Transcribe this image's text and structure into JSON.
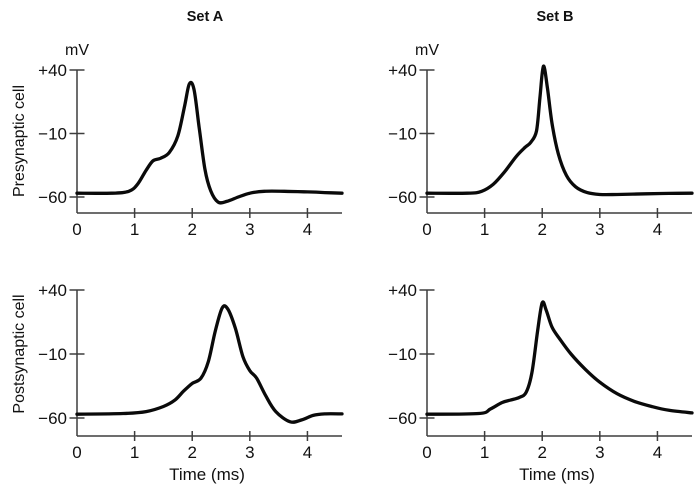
{
  "figure": {
    "background": "#ffffff",
    "curve_color": "#0a0a0a",
    "axis_color": "#3d3d3d",
    "text_color": "#111111"
  },
  "chart_data": {
    "type": "line",
    "columns": [
      "Set A",
      "Set B"
    ],
    "rows": [
      "Presynaptic cell",
      "Postsynaptic cell"
    ],
    "x_axis": {
      "label": "Time (ms)",
      "ticks": [
        0,
        1,
        2,
        3,
        4
      ],
      "range": [
        0,
        4.6
      ]
    },
    "y_axis": {
      "unit_label": "mV",
      "ticks": [
        {
          "value": 40,
          "label": "+40"
        },
        {
          "value": -10,
          "label": "−10"
        },
        {
          "value": -60,
          "label": "−60"
        }
      ],
      "range_shown": [
        -72,
        46
      ]
    },
    "panels": [
      {
        "id": "set-a-presynaptic",
        "column": "Set A",
        "row": "Presynaptic cell",
        "points": [
          [
            0,
            -57
          ],
          [
            0.6,
            -57
          ],
          [
            0.9,
            -55.5
          ],
          [
            1.05,
            -50
          ],
          [
            1.2,
            -39
          ],
          [
            1.32,
            -31.5
          ],
          [
            1.45,
            -29.5
          ],
          [
            1.6,
            -25
          ],
          [
            1.75,
            -12
          ],
          [
            1.87,
            12
          ],
          [
            1.95,
            29
          ],
          [
            2.03,
            25
          ],
          [
            2.12,
            -5
          ],
          [
            2.22,
            -38
          ],
          [
            2.32,
            -55
          ],
          [
            2.45,
            -64
          ],
          [
            2.6,
            -63.5
          ],
          [
            2.8,
            -60
          ],
          [
            3.0,
            -57
          ],
          [
            3.25,
            -55.5
          ],
          [
            3.6,
            -55.5
          ],
          [
            4.0,
            -56
          ],
          [
            4.3,
            -56.5
          ],
          [
            4.6,
            -57
          ]
        ]
      },
      {
        "id": "set-b-presynaptic",
        "column": "Set B",
        "row": "Presynaptic cell",
        "points": [
          [
            0,
            -57
          ],
          [
            0.7,
            -57
          ],
          [
            0.95,
            -55.5
          ],
          [
            1.15,
            -50
          ],
          [
            1.35,
            -40
          ],
          [
            1.55,
            -28
          ],
          [
            1.7,
            -21
          ],
          [
            1.8,
            -17
          ],
          [
            1.9,
            -8
          ],
          [
            1.96,
            18
          ],
          [
            2.02,
            43
          ],
          [
            2.09,
            26
          ],
          [
            2.17,
            -2
          ],
          [
            2.28,
            -26
          ],
          [
            2.42,
            -43
          ],
          [
            2.58,
            -52
          ],
          [
            2.78,
            -56.5
          ],
          [
            3.0,
            -58
          ],
          [
            3.3,
            -58
          ],
          [
            3.8,
            -57.5
          ],
          [
            4.2,
            -57.2
          ],
          [
            4.6,
            -57
          ]
        ]
      },
      {
        "id": "set-a-postsynaptic",
        "column": "Set A",
        "row": "Postsynaptic cell",
        "points": [
          [
            0,
            -57
          ],
          [
            0.8,
            -56.5
          ],
          [
            1.2,
            -55
          ],
          [
            1.5,
            -51
          ],
          [
            1.7,
            -46
          ],
          [
            1.85,
            -39
          ],
          [
            2.0,
            -33
          ],
          [
            2.15,
            -29
          ],
          [
            2.28,
            -16
          ],
          [
            2.4,
            8
          ],
          [
            2.52,
            26
          ],
          [
            2.62,
            25
          ],
          [
            2.75,
            10
          ],
          [
            2.88,
            -12
          ],
          [
            3.0,
            -23
          ],
          [
            3.12,
            -29
          ],
          [
            3.28,
            -43
          ],
          [
            3.45,
            -55
          ],
          [
            3.7,
            -63
          ],
          [
            3.9,
            -61.5
          ],
          [
            4.1,
            -58
          ],
          [
            4.3,
            -56.8
          ],
          [
            4.6,
            -56.8
          ]
        ]
      },
      {
        "id": "set-b-postsynaptic",
        "column": "Set B",
        "row": "Postsynaptic cell",
        "points": [
          [
            0,
            -57
          ],
          [
            0.9,
            -56.5
          ],
          [
            1.1,
            -53
          ],
          [
            1.3,
            -48
          ],
          [
            1.45,
            -46
          ],
          [
            1.6,
            -44
          ],
          [
            1.72,
            -40
          ],
          [
            1.82,
            -25
          ],
          [
            1.92,
            8
          ],
          [
            2.0,
            30
          ],
          [
            2.07,
            24
          ],
          [
            2.17,
            11
          ],
          [
            2.3,
            2
          ],
          [
            2.5,
            -10
          ],
          [
            2.75,
            -22
          ],
          [
            3.0,
            -32
          ],
          [
            3.3,
            -41
          ],
          [
            3.6,
            -47
          ],
          [
            3.9,
            -51
          ],
          [
            4.2,
            -54
          ],
          [
            4.6,
            -56
          ]
        ]
      }
    ]
  }
}
